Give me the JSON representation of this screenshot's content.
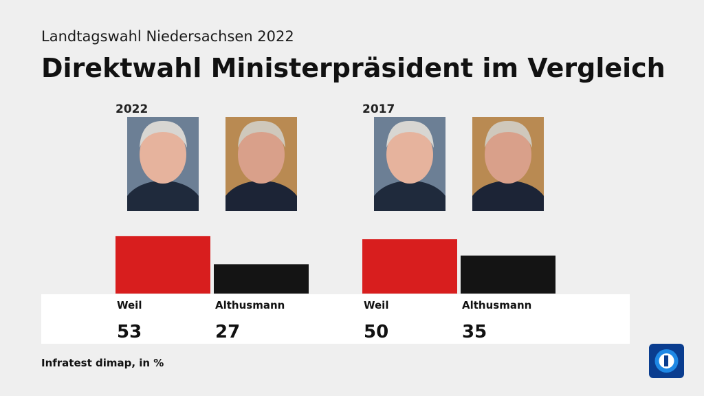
{
  "header": {
    "subtitle": "Landtagswahl Niedersachsen 2022",
    "title": "Direktwahl Ministerpräsident im Vergleich"
  },
  "chart_data": [
    {
      "type": "bar",
      "title": "2022",
      "categories": [
        "Weil",
        "Althusmann"
      ],
      "values": [
        53,
        27
      ],
      "colors": [
        "#d81e1e",
        "#141414"
      ]
    },
    {
      "type": "bar",
      "title": "2017",
      "categories": [
        "Weil",
        "Althusmann"
      ],
      "values": [
        50,
        35
      ],
      "colors": [
        "#d81e1e",
        "#141414"
      ]
    }
  ],
  "source": "Infratest dimap, in %"
}
